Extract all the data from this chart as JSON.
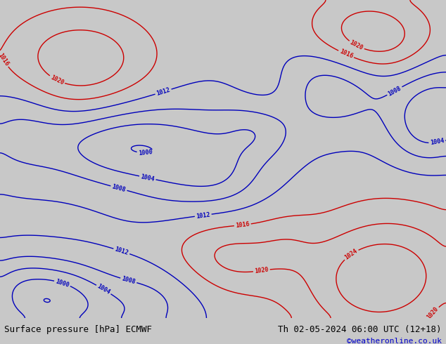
{
  "title_left": "Surface pressure [hPa] ECMWF",
  "title_right": "Th 02-05-2024 06:00 UTC (12+18)",
  "watermark": "©weatheronline.co.uk",
  "bg_color": "#c8c8c8",
  "land_color": "#b8ddb0",
  "ocean_color": "#c8c8c8",
  "border_color": "#909090",
  "contour_low_color": "#0000bb",
  "contour_high_color": "#cc0000",
  "contour_mid_color": "#000000",
  "font_size_title": 9,
  "font_size_watermark": 8,
  "font_size_clabel": 6,
  "lon_min": -25,
  "lon_max": 85,
  "lat_min": -43,
  "lat_max": 43,
  "figwidth": 6.34,
  "figheight": 4.9,
  "dpi": 100
}
